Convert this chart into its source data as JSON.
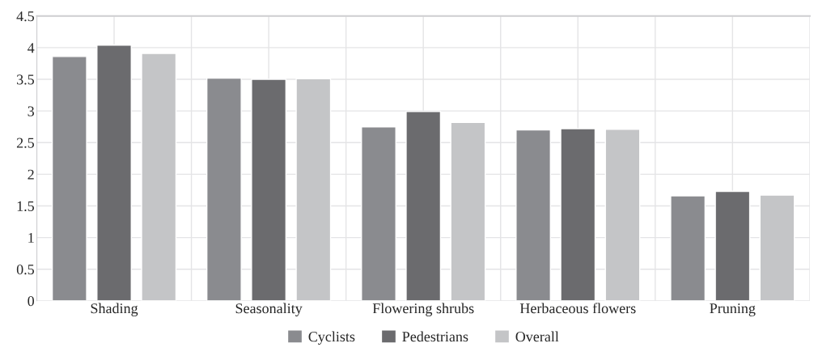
{
  "chart_data": {
    "type": "bar",
    "categories": [
      "Shading",
      "Seasonality",
      "Flowering shrubs",
      "Herbaceous flowers",
      "Pruning"
    ],
    "series": [
      {
        "name": "Cyclists",
        "color": "#8a8b8f",
        "values": [
          3.86,
          3.52,
          2.75,
          2.7,
          1.66
        ]
      },
      {
        "name": "Pedestrians",
        "color": "#6b6b6e",
        "values": [
          4.04,
          3.5,
          2.99,
          2.72,
          1.73
        ]
      },
      {
        "name": "Overall",
        "color": "#c4c5c7",
        "values": [
          3.91,
          3.51,
          2.82,
          2.71,
          1.67
        ]
      }
    ],
    "ylim": [
      0,
      4.5
    ],
    "yticks": [
      0,
      0.5,
      1,
      1.5,
      2,
      2.5,
      3,
      3.5,
      4,
      4.5
    ],
    "grid": true,
    "legend": "bottom"
  }
}
